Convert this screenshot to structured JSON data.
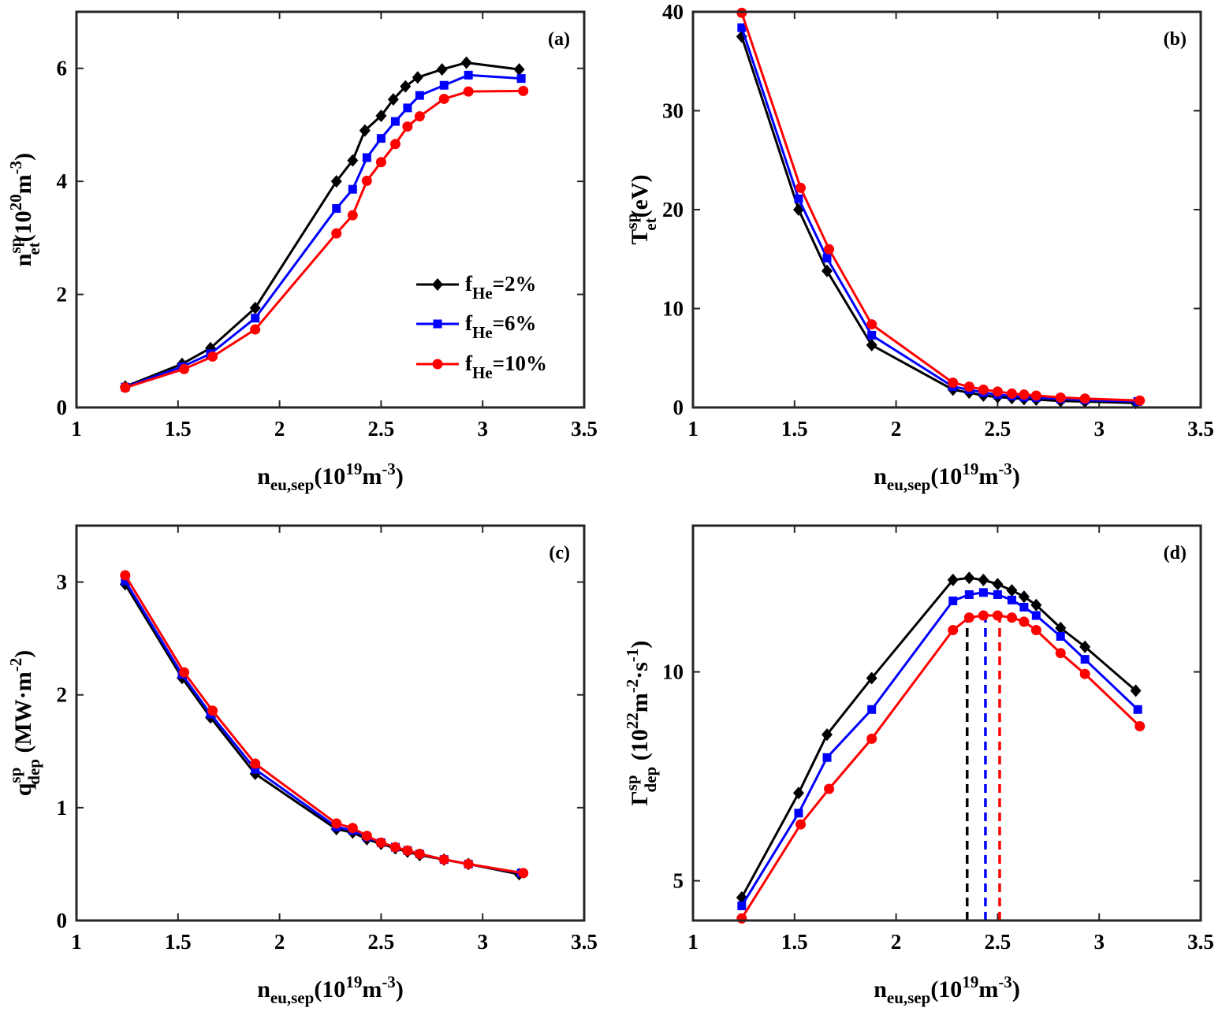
{
  "chart_data": [
    {
      "type": "line",
      "panel_label": "(a)",
      "ylabel": {
        "base": "n",
        "sup": "sp",
        "sub": "et",
        "rest": "(10",
        "rsup": "20",
        "rest2": "m",
        "rsup2": "-3",
        "end": ")"
      },
      "xlabel": {
        "base": "n",
        "sub": "eu,sep",
        "rest": "(10",
        "rsup": "19",
        "rest2": "m",
        "rsup2": "-3",
        "end": ")"
      },
      "xlim": [
        1,
        3.5
      ],
      "ylim": [
        0,
        7
      ],
      "xticks": [
        "1",
        "1.5",
        "2",
        "2.5",
        "3",
        "3.5"
      ],
      "yticks": [
        "0",
        "2",
        "4",
        "6"
      ],
      "xtick_values": [
        1,
        1.5,
        2,
        2.5,
        3,
        3.5
      ],
      "ytick_values": [
        0,
        2,
        4,
        6
      ],
      "legend": {
        "position": "middle-right"
      },
      "series": [
        {
          "name": "f_He=2%",
          "label_base": "f",
          "label_sub": "He",
          "label_rest": "=2%",
          "color": "#000000",
          "marker": "diamond",
          "x": [
            1.24,
            1.52,
            1.66,
            1.88,
            2.28,
            2.36,
            2.42,
            2.5,
            2.56,
            2.62,
            2.68,
            2.8,
            2.92,
            3.18
          ],
          "y": [
            0.37,
            0.77,
            1.05,
            1.76,
            4.0,
            4.37,
            4.9,
            5.16,
            5.45,
            5.68,
            5.84,
            5.98,
            6.1,
            5.98
          ]
        },
        {
          "name": "f_He=6%",
          "label_base": "f",
          "label_sub": "He",
          "label_rest": "=6%",
          "color": "#0000ff",
          "marker": "square",
          "x": [
            1.24,
            1.52,
            1.66,
            1.88,
            2.28,
            2.36,
            2.43,
            2.5,
            2.57,
            2.63,
            2.69,
            2.81,
            2.93,
            3.19
          ],
          "y": [
            0.36,
            0.72,
            0.95,
            1.58,
            3.52,
            3.86,
            4.42,
            4.76,
            5.06,
            5.3,
            5.52,
            5.7,
            5.88,
            5.82
          ]
        },
        {
          "name": "f_He=10%",
          "label_base": "f",
          "label_sub": "He",
          "label_rest": "=10%",
          "color": "#ff0000",
          "marker": "circle",
          "x": [
            1.24,
            1.53,
            1.67,
            1.88,
            2.28,
            2.36,
            2.43,
            2.5,
            2.57,
            2.63,
            2.69,
            2.81,
            2.93,
            3.2
          ],
          "y": [
            0.35,
            0.68,
            0.9,
            1.38,
            3.08,
            3.4,
            4.01,
            4.34,
            4.66,
            4.97,
            5.15,
            5.46,
            5.59,
            5.6
          ]
        }
      ]
    },
    {
      "type": "line",
      "panel_label": "(b)",
      "ylabel": {
        "base": "T",
        "sup": "sp",
        "sub": "et",
        "rest": "(eV)"
      },
      "xlabel": {
        "base": "n",
        "sub": "eu,sep",
        "rest": "(10",
        "rsup": "19",
        "rest2": "m",
        "rsup2": "-3",
        "end": ")"
      },
      "xlim": [
        1,
        3.5
      ],
      "ylim": [
        0,
        40
      ],
      "xticks": [
        "1",
        "1.5",
        "2",
        "2.5",
        "3",
        "3.5"
      ],
      "yticks": [
        "0",
        "10",
        "20",
        "30",
        "40"
      ],
      "xtick_values": [
        1,
        1.5,
        2,
        2.5,
        3,
        3.5
      ],
      "ytick_values": [
        0,
        10,
        20,
        30,
        40
      ],
      "series": [
        {
          "name": "f_He=2%",
          "color": "#000000",
          "marker": "diamond",
          "x": [
            1.24,
            1.52,
            1.66,
            1.88,
            2.28,
            2.36,
            2.43,
            2.5,
            2.57,
            2.63,
            2.69,
            2.81,
            2.93,
            3.18
          ],
          "y": [
            37.5,
            20.0,
            13.8,
            6.3,
            1.8,
            1.5,
            1.2,
            1.05,
            0.95,
            0.85,
            0.8,
            0.65,
            0.6,
            0.45
          ]
        },
        {
          "name": "f_He=6%",
          "color": "#0000ff",
          "marker": "square",
          "x": [
            1.24,
            1.52,
            1.66,
            1.88,
            2.28,
            2.36,
            2.43,
            2.5,
            2.57,
            2.63,
            2.69,
            2.81,
            2.93,
            3.19
          ],
          "y": [
            38.4,
            21.1,
            15.1,
            7.3,
            2.1,
            1.8,
            1.5,
            1.3,
            1.15,
            1.05,
            1.0,
            0.85,
            0.75,
            0.6
          ]
        },
        {
          "name": "f_He=10%",
          "color": "#ff0000",
          "marker": "circle",
          "x": [
            1.24,
            1.53,
            1.67,
            1.88,
            2.28,
            2.36,
            2.43,
            2.5,
            2.57,
            2.63,
            2.69,
            2.81,
            2.93,
            3.2
          ],
          "y": [
            39.9,
            22.2,
            16.0,
            8.4,
            2.5,
            2.1,
            1.8,
            1.6,
            1.4,
            1.3,
            1.2,
            1.0,
            0.9,
            0.7
          ]
        }
      ]
    },
    {
      "type": "line",
      "panel_label": "(c)",
      "ylabel": {
        "base": "q",
        "sup": "sp",
        "sub": "dep",
        "rest": " (MW·m",
        "rsup": "-2",
        "end": ")"
      },
      "xlabel": {
        "base": "n",
        "sub": "eu,sep",
        "rest": "(10",
        "rsup": "19",
        "rest2": "m",
        "rsup2": "-3",
        "end": ")"
      },
      "xlim": [
        1,
        3.5
      ],
      "ylim": [
        0,
        3.5
      ],
      "xticks": [
        "1",
        "1.5",
        "2",
        "2.5",
        "3",
        "3.5"
      ],
      "yticks": [
        "0",
        "1",
        "2",
        "3"
      ],
      "xtick_values": [
        1,
        1.5,
        2,
        2.5,
        3,
        3.5
      ],
      "ytick_values": [
        0,
        1,
        2,
        3
      ],
      "series": [
        {
          "name": "f_He=2%",
          "color": "#000000",
          "marker": "diamond",
          "x": [
            1.24,
            1.52,
            1.66,
            1.88,
            2.28,
            2.36,
            2.43,
            2.5,
            2.57,
            2.63,
            2.69,
            2.81,
            2.93,
            3.18
          ],
          "y": [
            2.98,
            2.15,
            1.8,
            1.3,
            0.81,
            0.78,
            0.72,
            0.68,
            0.64,
            0.61,
            0.58,
            0.54,
            0.5,
            0.41
          ]
        },
        {
          "name": "f_He=6%",
          "color": "#0000ff",
          "marker": "square",
          "x": [
            1.24,
            1.52,
            1.66,
            1.88,
            2.28,
            2.36,
            2.43,
            2.5,
            2.57,
            2.63,
            2.69,
            2.81,
            2.93,
            3.19
          ],
          "y": [
            3.01,
            2.18,
            1.83,
            1.34,
            0.83,
            0.8,
            0.74,
            0.69,
            0.65,
            0.62,
            0.59,
            0.54,
            0.5,
            0.42
          ]
        },
        {
          "name": "f_He=10%",
          "color": "#ff0000",
          "marker": "circle",
          "x": [
            1.24,
            1.53,
            1.67,
            1.88,
            2.28,
            2.36,
            2.43,
            2.5,
            2.57,
            2.63,
            2.69,
            2.81,
            2.93,
            3.2
          ],
          "y": [
            3.06,
            2.2,
            1.86,
            1.39,
            0.86,
            0.82,
            0.75,
            0.69,
            0.65,
            0.62,
            0.59,
            0.54,
            0.5,
            0.42
          ]
        }
      ]
    },
    {
      "type": "line",
      "panel_label": "(d)",
      "ylabel": {
        "base": "Γ",
        "sup": "sp",
        "sub": "dep",
        "rest": " (10",
        "rsup": "22",
        "rest2": "m",
        "rsup2": "-2",
        "rest3": "·s",
        "rsup3": "-1",
        "end": ")"
      },
      "xlabel": {
        "base": "n",
        "sub": "eu,sep",
        "rest": "(10",
        "rsup": "19",
        "rest2": "m",
        "rsup2": "-3",
        "end": ")"
      },
      "xlim": [
        1,
        3.5
      ],
      "ylim": [
        4.05,
        13.5
      ],
      "xticks": [
        "1",
        "1.5",
        "2",
        "2.5",
        "3",
        "3.5"
      ],
      "yticks": [
        "5",
        "10"
      ],
      "xtick_values": [
        1,
        1.5,
        2,
        2.5,
        3,
        3.5
      ],
      "ytick_values": [
        5,
        10
      ],
      "peak_markers": [
        {
          "x": 2.35,
          "y": 11.3,
          "color": "#000000"
        },
        {
          "x": 2.44,
          "y": 11.3,
          "color": "#0000ff"
        },
        {
          "x": 2.51,
          "y": 11.3,
          "color": "#ff0000"
        }
      ],
      "series": [
        {
          "name": "f_He=2%",
          "color": "#000000",
          "marker": "diamond",
          "x": [
            1.24,
            1.52,
            1.66,
            1.88,
            2.28,
            2.36,
            2.43,
            2.5,
            2.57,
            2.63,
            2.69,
            2.81,
            2.93,
            3.18
          ],
          "y": [
            4.6,
            7.1,
            8.5,
            9.85,
            12.2,
            12.25,
            12.2,
            12.1,
            11.95,
            11.8,
            11.6,
            11.05,
            10.6,
            9.55
          ]
        },
        {
          "name": "f_He=6%",
          "color": "#0000ff",
          "marker": "square",
          "x": [
            1.24,
            1.52,
            1.66,
            1.88,
            2.28,
            2.36,
            2.43,
            2.5,
            2.57,
            2.63,
            2.69,
            2.81,
            2.93,
            3.19
          ],
          "y": [
            4.4,
            6.62,
            7.95,
            9.1,
            11.7,
            11.85,
            11.9,
            11.85,
            11.72,
            11.55,
            11.35,
            10.85,
            10.3,
            9.1
          ]
        },
        {
          "name": "f_He=10%",
          "color": "#ff0000",
          "marker": "circle",
          "x": [
            1.24,
            1.53,
            1.67,
            1.88,
            2.28,
            2.36,
            2.43,
            2.5,
            2.57,
            2.63,
            2.69,
            2.81,
            2.93,
            3.2
          ],
          "y": [
            4.1,
            6.35,
            7.2,
            8.4,
            11.0,
            11.3,
            11.35,
            11.35,
            11.3,
            11.2,
            11.0,
            10.45,
            9.95,
            8.7
          ]
        }
      ]
    }
  ]
}
